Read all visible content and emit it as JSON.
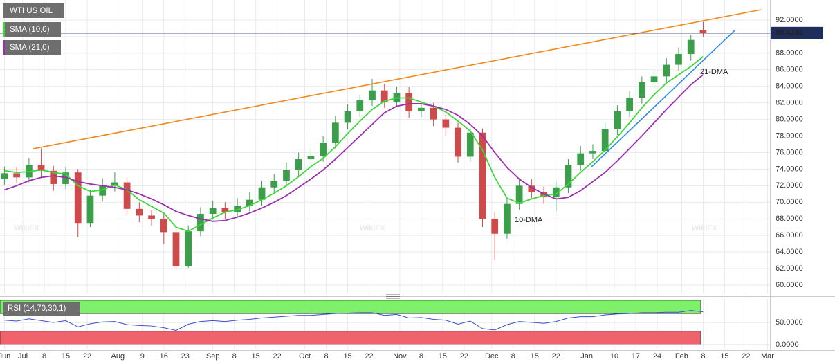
{
  "chart_data": [
    {
      "type": "candlestick",
      "title": "WTI US OIL",
      "watermark": "WikiFX",
      "x": [
        -6,
        -2,
        2,
        6,
        10,
        14,
        18,
        22,
        26,
        30,
        34,
        38,
        42,
        46,
        50,
        54,
        58,
        62,
        66,
        70,
        74,
        78,
        82,
        86,
        90,
        94,
        98,
        102,
        106,
        110,
        114,
        118,
        122,
        126,
        130,
        134,
        138,
        142,
        146,
        150,
        154,
        158,
        162,
        166,
        170,
        174,
        178,
        182,
        186,
        190,
        194,
        198,
        202,
        206,
        210,
        214,
        218,
        222
      ],
      "open": [
        72.8,
        73.5,
        73.0,
        74.5,
        73.8,
        72.2,
        73.6,
        67.5,
        70.8,
        72.0,
        72.4,
        69.2,
        68.4,
        68.0,
        66.4,
        62.3,
        66.5,
        68.6,
        69.3,
        68.8,
        69.6,
        70.3,
        71.8,
        72.6,
        73.9,
        75.2,
        75.6,
        77.2,
        79.6,
        81.0,
        82.3,
        83.5,
        82.1,
        83.2,
        81.0,
        81.4,
        80.0,
        79.0,
        75.5,
        78.4,
        68.0,
        66.2,
        69.8,
        72.0,
        71.2,
        70.6,
        71.8,
        74.5,
        75.9,
        76.2,
        78.8,
        81.0,
        82.6,
        84.5,
        85.2,
        86.6,
        87.9,
        90.8
      ],
      "high": [
        74.3,
        74.2,
        75.3,
        76.5,
        74.4,
        74.2,
        74.0,
        71.5,
        72.9,
        73.6,
        73.0,
        70.0,
        69.1,
        68.6,
        66.9,
        67.2,
        69.4,
        70.2,
        70.0,
        70.5,
        71.2,
        72.6,
        73.4,
        74.8,
        76.0,
        76.5,
        78.0,
        80.4,
        81.8,
        83.0,
        84.9,
        84.3,
        84.0,
        83.9,
        82.2,
        82.0,
        80.6,
        79.6,
        79.0,
        78.9,
        68.8,
        70.6,
        72.9,
        72.8,
        71.9,
        72.5,
        75.2,
        76.8,
        77.0,
        79.6,
        81.7,
        83.4,
        85.2,
        86.0,
        87.4,
        88.7,
        90.2,
        91.8
      ],
      "low": [
        72.1,
        72.3,
        72.4,
        73.0,
        71.4,
        71.6,
        65.8,
        67.0,
        70.1,
        71.3,
        68.5,
        67.6,
        67.2,
        65.0,
        62.0,
        62.1,
        65.9,
        67.9,
        68.0,
        68.2,
        68.9,
        69.6,
        71.0,
        71.9,
        73.1,
        74.5,
        74.9,
        76.5,
        78.8,
        80.3,
        81.6,
        81.4,
        81.5,
        80.2,
        80.3,
        79.2,
        78.0,
        74.8,
        74.9,
        67.0,
        63.0,
        65.6,
        69.1,
        70.5,
        69.8,
        68.9,
        71.1,
        73.8,
        75.2,
        75.5,
        78.1,
        80.3,
        81.9,
        83.8,
        84.4,
        85.9,
        87.1,
        90.0
      ],
      "close": [
        73.5,
        73.0,
        74.5,
        73.8,
        72.2,
        73.6,
        67.5,
        70.8,
        72.0,
        72.4,
        69.2,
        68.4,
        68.0,
        66.4,
        62.3,
        66.5,
        68.6,
        69.3,
        68.8,
        69.6,
        70.3,
        71.8,
        72.6,
        73.9,
        75.2,
        75.6,
        77.2,
        79.6,
        81.0,
        82.3,
        83.5,
        82.1,
        83.2,
        81.0,
        81.4,
        80.0,
        79.0,
        75.5,
        78.4,
        68.0,
        66.2,
        69.8,
        72.0,
        71.2,
        70.6,
        71.8,
        74.5,
        75.9,
        76.2,
        78.8,
        81.0,
        82.6,
        84.5,
        85.2,
        86.6,
        87.9,
        89.6,
        90.4
      ],
      "up_color": "#3b9e4a",
      "down_color": "#cf4a4a",
      "series": [
        {
          "name": "SMA (10,0)",
          "color": "#3fd63a",
          "values": [
            73.8,
            73.6,
            73.7,
            73.9,
            73.6,
            73.4,
            72.0,
            71.3,
            71.5,
            72.1,
            71.5,
            70.3,
            69.5,
            68.7,
            67.0,
            66.5,
            67.3,
            68.1,
            68.8,
            69.1,
            69.6,
            70.3,
            71.1,
            72.0,
            73.1,
            74.3,
            75.3,
            76.7,
            78.3,
            79.8,
            81.2,
            82.2,
            82.6,
            82.6,
            82.1,
            81.6,
            80.9,
            79.8,
            78.6,
            76.3,
            73.0,
            70.5,
            69.9,
            70.4,
            70.8,
            71.0,
            72.2,
            73.6,
            74.9,
            76.3,
            77.9,
            79.6,
            81.4,
            83.0,
            84.4,
            85.4,
            86.4,
            87.6
          ]
        },
        {
          "name": "SMA (21,0)",
          "color": "#9b2fae",
          "values": [
            71.5,
            72.0,
            72.6,
            73.0,
            73.2,
            73.0,
            72.5,
            72.2,
            72.0,
            71.8,
            71.5,
            71.0,
            70.4,
            69.7,
            68.9,
            68.4,
            68.0,
            67.7,
            67.8,
            68.2,
            68.7,
            69.3,
            70.0,
            70.8,
            71.8,
            72.8,
            73.9,
            75.2,
            76.6,
            78.0,
            79.4,
            80.8,
            81.6,
            81.9,
            81.9,
            81.6,
            81.2,
            80.5,
            79.4,
            78.0,
            76.0,
            74.2,
            72.8,
            71.8,
            71.0,
            70.4,
            70.6,
            71.4,
            72.5,
            73.6,
            75.0,
            76.5,
            78.0,
            79.6,
            81.2,
            82.7,
            84.2,
            85.4
          ]
        }
      ],
      "annotations": [
        {
          "text": "10-DMA",
          "color": "#2fbf2a"
        },
        {
          "text": "21-DMA",
          "color": "#9b2fae"
        }
      ],
      "trendlines": [
        {
          "color": "#f0881a",
          "x": [
            3.4,
            240.9
          ],
          "y": [
            76.46,
            93.25
          ]
        },
        {
          "color": "#2b8be6",
          "x": [
            185.6,
            232.3
          ],
          "y": [
            74.29,
            90.75
          ]
        }
      ],
      "last_price": {
        "value": 90.424,
        "label": "90.4240"
      },
      "last_price_color": "#1f2d5a",
      "xlim": [
        -7.45,
        243.8
      ],
      "ylim": [
        58.91,
        94.42
      ],
      "xticks": [
        {
          "value": -6,
          "label": "Jun"
        },
        {
          "value": 0,
          "label": "Jul"
        },
        {
          "value": 7,
          "label": "8"
        },
        {
          "value": 14,
          "label": "15"
        },
        {
          "value": 21,
          "label": "22"
        },
        {
          "value": 31,
          "label": "Aug"
        },
        {
          "value": 39,
          "label": "9"
        },
        {
          "value": 46,
          "label": "16"
        },
        {
          "value": 53,
          "label": "23"
        },
        {
          "value": 62,
          "label": "Sep"
        },
        {
          "value": 69,
          "label": "8"
        },
        {
          "value": 76,
          "label": "15"
        },
        {
          "value": 83,
          "label": "22"
        },
        {
          "value": 92,
          "label": "Oct"
        },
        {
          "value": 99,
          "label": "8"
        },
        {
          "value": 106,
          "label": "15"
        },
        {
          "value": 113,
          "label": "22"
        },
        {
          "value": 123,
          "label": "Nov"
        },
        {
          "value": 130,
          "label": "8"
        },
        {
          "value": 137,
          "label": "15"
        },
        {
          "value": 144,
          "label": "22"
        },
        {
          "value": 153,
          "label": "Dec"
        },
        {
          "value": 160,
          "label": "8"
        },
        {
          "value": 167,
          "label": "15"
        },
        {
          "value": 174,
          "label": "22"
        },
        {
          "value": 184,
          "label": "Jan"
        },
        {
          "value": 193,
          "label": "10"
        },
        {
          "value": 200,
          "label": "17"
        },
        {
          "value": 207,
          "label": "24"
        },
        {
          "value": 215,
          "label": "Feb"
        },
        {
          "value": 222,
          "label": "8"
        },
        {
          "value": 229,
          "label": "15"
        },
        {
          "value": 236,
          "label": "22"
        },
        {
          "value": 243,
          "label": "Mar"
        }
      ],
      "yticks": [
        {
          "value": 60,
          "label": "60.0000"
        },
        {
          "value": 62,
          "label": "62.0000"
        },
        {
          "value": 64,
          "label": "64.0000"
        },
        {
          "value": 66,
          "label": "66.0000"
        },
        {
          "value": 68,
          "label": "68.0000"
        },
        {
          "value": 70,
          "label": "70.0000"
        },
        {
          "value": 72,
          "label": "72.0000"
        },
        {
          "value": 74,
          "label": "74.0000"
        },
        {
          "value": 76,
          "label": "76.0000"
        },
        {
          "value": 78,
          "label": "78.0000"
        },
        {
          "value": 80,
          "label": "80.0000"
        },
        {
          "value": 82,
          "label": "82.0000"
        },
        {
          "value": 84,
          "label": "84.0000"
        },
        {
          "value": 86,
          "label": "86.0000"
        },
        {
          "value": 88,
          "label": "88.0000"
        },
        {
          "value": 90,
          "label": "90.0000"
        },
        {
          "value": 92,
          "label": "92.0000"
        }
      ],
      "grid": true
    },
    {
      "type": "line",
      "title": "RSI (14,70,30,1)",
      "x": [
        -6,
        -2,
        2,
        6,
        10,
        14,
        18,
        22,
        26,
        30,
        34,
        38,
        42,
        46,
        50,
        54,
        58,
        62,
        66,
        70,
        74,
        78,
        82,
        86,
        90,
        94,
        98,
        102,
        106,
        110,
        114,
        118,
        122,
        126,
        130,
        134,
        138,
        142,
        146,
        150,
        154,
        158,
        162,
        166,
        170,
        174,
        178,
        182,
        186,
        190,
        194,
        198,
        202,
        206,
        210,
        214,
        218,
        222
      ],
      "series": [
        {
          "name": "RSI",
          "color": "#3a4fc8",
          "values": [
            55,
            53,
            58,
            54,
            50,
            54,
            40,
            47,
            51,
            52,
            45,
            43,
            42,
            38,
            32,
            46,
            52,
            54,
            52,
            55,
            57,
            60,
            62,
            64,
            66,
            66,
            68,
            70,
            71,
            72,
            72,
            66,
            68,
            60,
            61,
            57,
            55,
            46,
            53,
            36,
            33,
            45,
            52,
            50,
            48,
            52,
            60,
            63,
            63,
            67,
            69,
            70,
            72,
            72,
            73,
            73,
            77,
            74
          ]
        }
      ],
      "bands": [
        {
          "from": 70,
          "to": 100,
          "color": "#7ef06c"
        },
        {
          "from": 0,
          "to": 30,
          "color": "#f0636c"
        }
      ],
      "xlim": [
        -7.45,
        243.8
      ],
      "ylim": [
        -11,
        103
      ],
      "yticks": [
        {
          "value": 50,
          "label": "50.0000"
        },
        {
          "value": 0,
          "label": "0.0000"
        }
      ],
      "grid": true
    }
  ]
}
